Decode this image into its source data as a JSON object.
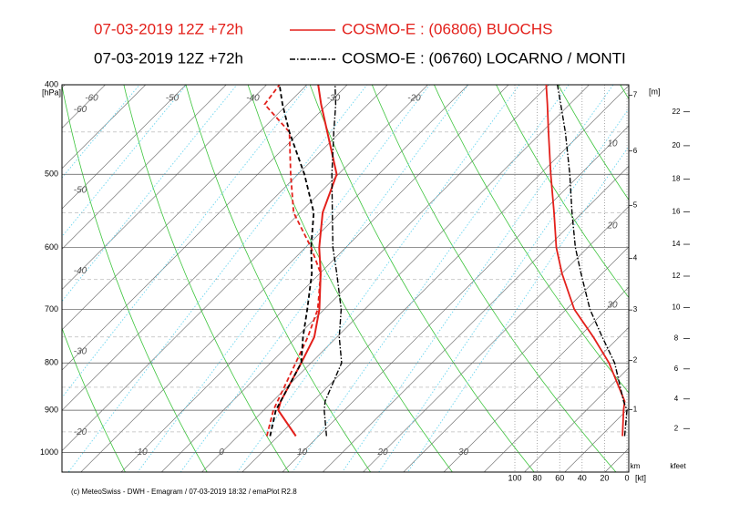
{
  "chart_data": {
    "type": "emagram",
    "run": "07-03-2019  12Z +72h",
    "y_unit": "[hPa]",
    "x2_unit": "[kt]",
    "km_label": "km",
    "m_label": "[m]",
    "kfeet_label": "kfeet",
    "footer": "(c) MeteoSwiss - DWH - Emagram / 07-03-2019 18:32 / emaPlot R2.8",
    "ylim": [
      400,
      1050
    ],
    "yscale": "log",
    "yticks": [
      400,
      500,
      600,
      700,
      800,
      900,
      1000
    ],
    "isotherm_labels_top": [
      -60,
      -50,
      -40,
      -30,
      -20
    ],
    "isotherm_labels_left": [
      -60,
      -50,
      -40,
      -30,
      -20
    ],
    "isotherm_labels_bottom": [
      -10,
      0,
      10,
      20,
      30
    ],
    "adiabat_labels": [
      10,
      20,
      30
    ],
    "wind_lim": [
      0,
      100
    ],
    "wind_ticks": [
      100,
      80,
      60,
      40,
      20,
      0
    ],
    "km_ticks": [
      1,
      2,
      3,
      4,
      5,
      6,
      7
    ],
    "kfeet_ticks": [
      2,
      4,
      6,
      8,
      10,
      12,
      14,
      16,
      18,
      20,
      22
    ],
    "pressures": [
      960,
      900,
      880,
      800,
      750,
      700,
      640,
      600,
      550,
      500,
      450,
      420,
      400
    ],
    "series": [
      {
        "name": "COSMO-E : (06806)  BUOCHS",
        "color": "#e3201b",
        "dash": "solid",
        "temperature": [
          7.2,
          1.8,
          1.0,
          -1.2,
          -2.8,
          -5.6,
          -9.9,
          -13.3,
          -17.2,
          -20.2,
          -26.6,
          -30.8,
          -33.6
        ],
        "dewpoint": [
          3.6,
          1.2,
          0.6,
          -1.9,
          -3.6,
          -5.8,
          -9.9,
          -14.3,
          -20.8,
          -25.9,
          -31.3,
          -37.8,
          -38.4
        ],
        "wind_speed": [
          4,
          3,
          2,
          16,
          30,
          47,
          58,
          63,
          65,
          68,
          70,
          71,
          72
        ]
      },
      {
        "name": "COSMO-E : (06760)  LOCARNO / MONTI",
        "color": "#000000",
        "dash": "dashdot",
        "temperature": [
          11,
          7.5,
          6.5,
          3.8,
          0.3,
          -2.9,
          -7.9,
          -11.6,
          -16,
          -20.8,
          -25.8,
          -29,
          -31.5
        ],
        "dewpoint": [
          4.0,
          1.5,
          1.0,
          -1.2,
          -4.2,
          -7.1,
          -11,
          -14.3,
          -18.3,
          -24.2,
          -31.3,
          -35.6,
          -38.4
        ],
        "wind_speed": [
          2,
          0,
          3,
          11,
          22,
          33,
          41,
          46,
          49,
          51,
          55,
          59,
          62
        ]
      }
    ]
  }
}
